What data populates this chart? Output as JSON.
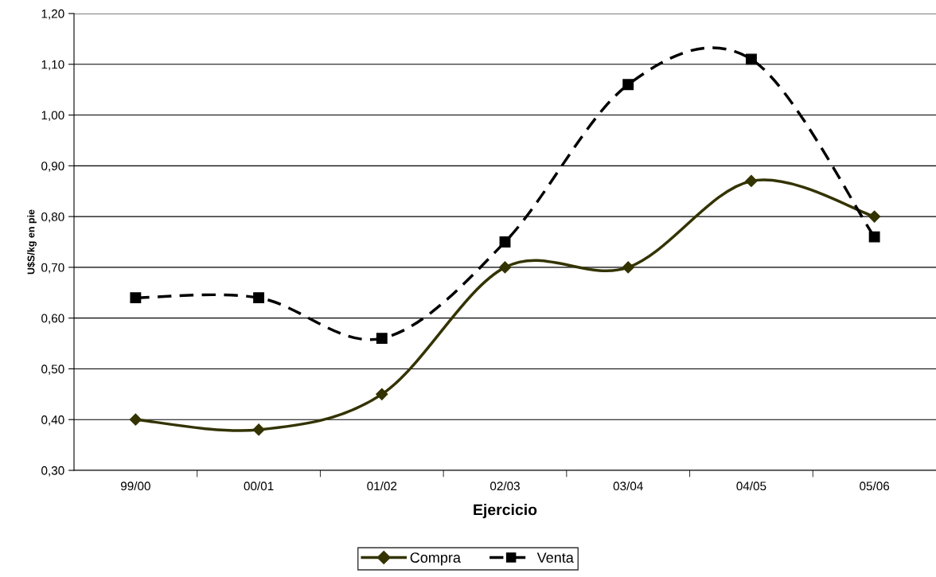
{
  "chart_data": {
    "type": "line",
    "xlabel": "Ejercicio",
    "ylabel": "U$S/kg en pie",
    "categories": [
      "99/00",
      "00/01",
      "01/02",
      "02/03",
      "03/04",
      "04/05",
      "05/06"
    ],
    "series": [
      {
        "name": "Compra",
        "color": "#333300",
        "marker": "diamond",
        "line_style": "solid",
        "values": [
          0.4,
          0.38,
          0.45,
          0.7,
          0.7,
          0.87,
          0.8
        ]
      },
      {
        "name": "Venta",
        "color": "#000000",
        "marker": "square",
        "line_style": "dashed",
        "values": [
          0.64,
          0.64,
          0.56,
          0.75,
          1.06,
          1.11,
          0.76
        ]
      }
    ],
    "ylim": [
      0.3,
      1.2
    ],
    "yticks": [
      {
        "value": 0.3,
        "label": "0,30"
      },
      {
        "value": 0.4,
        "label": "0,40"
      },
      {
        "value": 0.5,
        "label": "0,50"
      },
      {
        "value": 0.6,
        "label": "0,60"
      },
      {
        "value": 0.7,
        "label": "0,70"
      },
      {
        "value": 0.8,
        "label": "0,80"
      },
      {
        "value": 0.9,
        "label": "0,90"
      },
      {
        "value": 1.0,
        "label": "1,00"
      },
      {
        "value": 1.1,
        "label": "1,10"
      },
      {
        "value": 1.2,
        "label": "1,20"
      }
    ],
    "grid": "y",
    "legend": "bottom"
  }
}
